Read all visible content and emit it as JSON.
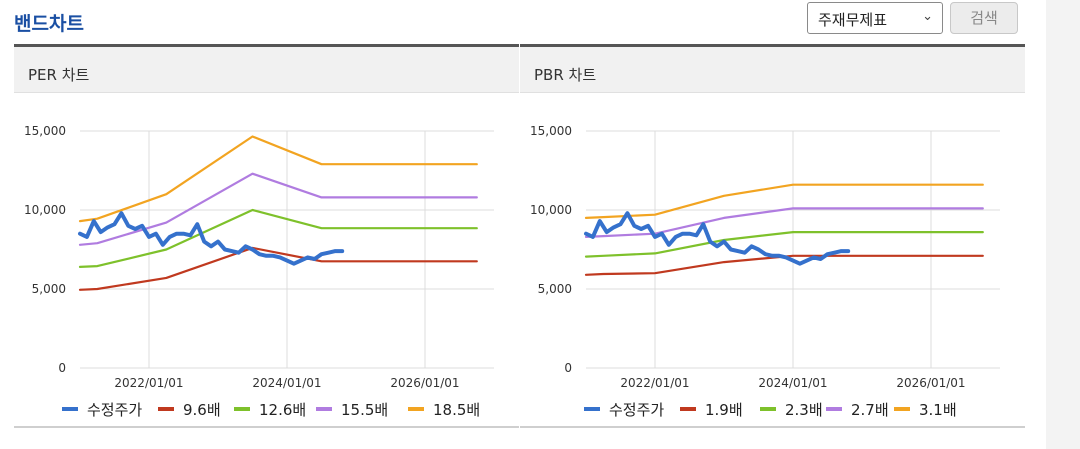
{
  "header": {
    "title": "밴드차트",
    "select_value": "주재무제표",
    "search_label": "검색"
  },
  "colors": {
    "price": "#3571cc",
    "band1": "#c0391f",
    "band2": "#7ec12b",
    "band3": "#b07ce0",
    "band4": "#f2a421",
    "title": "#1a4fa3"
  },
  "chart_data": [
    {
      "type": "line",
      "title": "PER 차트",
      "ylim": [
        0,
        15000
      ],
      "xlim": [
        2021.0,
        2027.0
      ],
      "yticks": [
        "0",
        "5,000",
        "10,000",
        "15,000"
      ],
      "xticks": [
        "2022/01/01",
        "2024/01/01",
        "2026/01/01"
      ],
      "series": [
        {
          "name": "수정주가",
          "color_key": "price",
          "x": [
            2021.0,
            2021.1,
            2021.2,
            2021.3,
            2021.4,
            2021.5,
            2021.6,
            2021.7,
            2021.8,
            2021.9,
            2022.0,
            2022.1,
            2022.2,
            2022.3,
            2022.4,
            2022.5,
            2022.6,
            2022.7,
            2022.8,
            2022.9,
            2023.0,
            2023.1,
            2023.2,
            2023.3,
            2023.4,
            2023.5,
            2023.6,
            2023.7,
            2023.8,
            2023.9,
            2024.0,
            2024.1,
            2024.2,
            2024.3,
            2024.4,
            2024.5,
            2024.6,
            2024.7,
            2024.8
          ],
          "y": [
            8500,
            8300,
            9300,
            8600,
            8900,
            9100,
            9800,
            9000,
            8800,
            9000,
            8300,
            8500,
            7800,
            8300,
            8500,
            8500,
            8400,
            9100,
            8000,
            7700,
            8000,
            7500,
            7400,
            7300,
            7700,
            7500,
            7200,
            7100,
            7100,
            7000,
            6800,
            6600,
            6800,
            7000,
            6900,
            7200,
            7300,
            7400,
            7400
          ]
        },
        {
          "name": "9.6배",
          "color_key": "band1",
          "x": [
            2021.0,
            2021.25,
            2022.25,
            2023.5,
            2024.5,
            2026.75
          ],
          "y": [
            4950,
            5000,
            5700,
            7600,
            6750,
            6750
          ]
        },
        {
          "name": "12.6배",
          "color_key": "band2",
          "x": [
            2021.0,
            2021.25,
            2022.25,
            2023.5,
            2024.5,
            2026.75
          ],
          "y": [
            6400,
            6450,
            7500,
            10000,
            8850,
            8850
          ]
        },
        {
          "name": "15.5배",
          "color_key": "band3",
          "x": [
            2021.0,
            2021.25,
            2022.25,
            2023.5,
            2024.5,
            2026.75
          ],
          "y": [
            7800,
            7900,
            9200,
            12300,
            10800,
            10800
          ]
        },
        {
          "name": "18.5배",
          "color_key": "band4",
          "x": [
            2021.0,
            2021.25,
            2022.25,
            2023.5,
            2024.5,
            2026.75
          ],
          "y": [
            9300,
            9450,
            11000,
            14650,
            12900,
            12900
          ]
        }
      ]
    },
    {
      "type": "line",
      "title": "PBR 차트",
      "ylim": [
        0,
        15000
      ],
      "xlim": [
        2021.0,
        2027.0
      ],
      "yticks": [
        "0",
        "5,000",
        "10,000",
        "15,000"
      ],
      "xticks": [
        "2022/01/01",
        "2024/01/01",
        "2026/01/01"
      ],
      "series": [
        {
          "name": "수정주가",
          "color_key": "price",
          "x": [
            2021.0,
            2021.1,
            2021.2,
            2021.3,
            2021.4,
            2021.5,
            2021.6,
            2021.7,
            2021.8,
            2021.9,
            2022.0,
            2022.1,
            2022.2,
            2022.3,
            2022.4,
            2022.5,
            2022.6,
            2022.7,
            2022.8,
            2022.9,
            2023.0,
            2023.1,
            2023.2,
            2023.3,
            2023.4,
            2023.5,
            2023.6,
            2023.7,
            2023.8,
            2023.9,
            2024.0,
            2024.1,
            2024.2,
            2024.3,
            2024.4,
            2024.5,
            2024.6,
            2024.7,
            2024.8
          ],
          "y": [
            8500,
            8300,
            9300,
            8600,
            8900,
            9100,
            9800,
            9000,
            8800,
            9000,
            8300,
            8500,
            7800,
            8300,
            8500,
            8500,
            8400,
            9100,
            8000,
            7700,
            8000,
            7500,
            7400,
            7300,
            7700,
            7500,
            7200,
            7100,
            7100,
            7000,
            6800,
            6600,
            6800,
            7000,
            6900,
            7200,
            7300,
            7400,
            7400
          ]
        },
        {
          "name": "1.9배",
          "color_key": "band1",
          "x": [
            2021.0,
            2021.25,
            2022.0,
            2023.0,
            2024.0,
            2026.75
          ],
          "y": [
            5900,
            5950,
            6000,
            6700,
            7100,
            7100
          ]
        },
        {
          "name": "2.3배",
          "color_key": "band2",
          "x": [
            2021.0,
            2021.25,
            2022.0,
            2023.0,
            2024.0,
            2026.75
          ],
          "y": [
            7050,
            7100,
            7250,
            8100,
            8600,
            8600
          ]
        },
        {
          "name": "2.7배",
          "color_key": "band3",
          "x": [
            2021.0,
            2021.25,
            2022.0,
            2023.0,
            2024.0,
            2026.75
          ],
          "y": [
            8300,
            8350,
            8500,
            9500,
            10100,
            10100
          ]
        },
        {
          "name": "3.1배",
          "color_key": "band4",
          "x": [
            2021.0,
            2021.25,
            2022.0,
            2023.0,
            2024.0,
            2026.75
          ],
          "y": [
            9500,
            9550,
            9700,
            10900,
            11600,
            11600
          ]
        }
      ]
    }
  ]
}
